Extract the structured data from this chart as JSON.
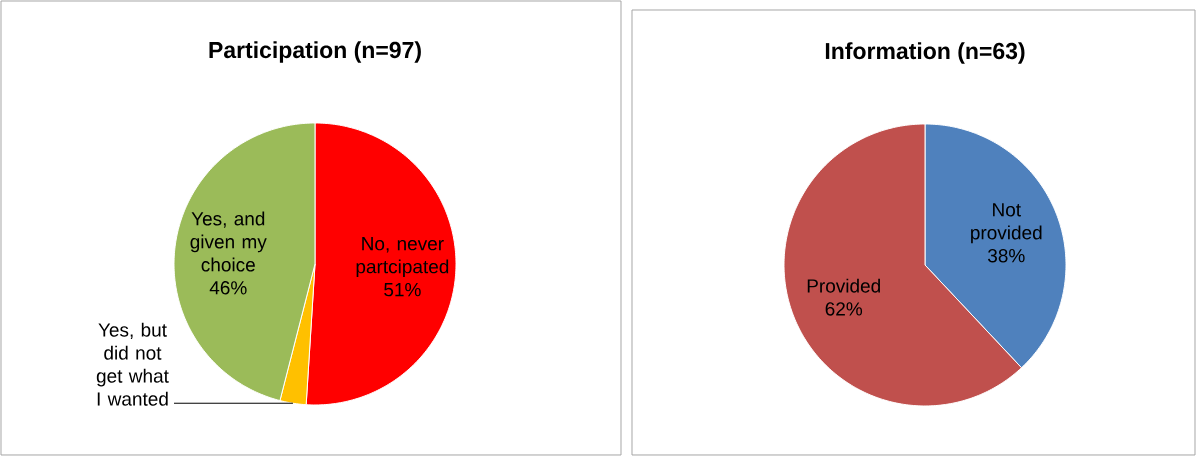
{
  "chart_data": [
    {
      "type": "pie",
      "title": "Participation (n=97)",
      "categories": [
        "No, never partcipated",
        "Yes, but did not get what I wanted",
        "Yes, and given my choice"
      ],
      "values": [
        51,
        3,
        46
      ],
      "value_labels": [
        "51%",
        null,
        "46%"
      ],
      "colors": [
        "#ff0000",
        "#ffc000",
        "#9bbb59"
      ]
    },
    {
      "type": "pie",
      "title": "Information (n=63)",
      "categories": [
        "Not provided",
        "Provided"
      ],
      "values": [
        38,
        62
      ],
      "value_labels": [
        "38%",
        "62%"
      ],
      "colors": [
        "#4f81bd",
        "#c0504d"
      ]
    }
  ]
}
